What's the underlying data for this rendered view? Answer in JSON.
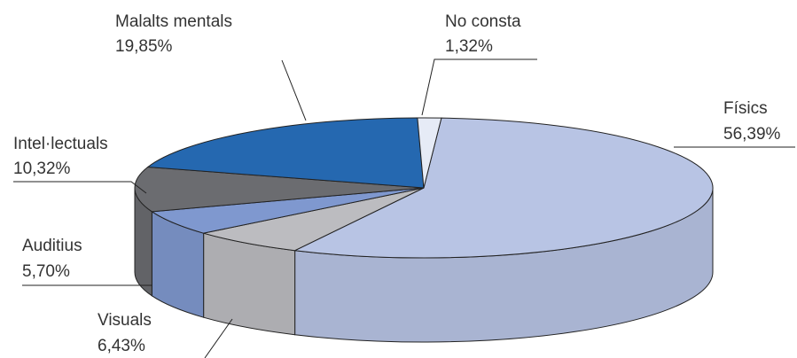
{
  "chart_data": {
    "type": "pie",
    "style": "3d",
    "title": "",
    "legend": "none",
    "slices": [
      {
        "name": "Físics",
        "value": 56.39,
        "value_label": "56,39%",
        "color": "#b8c4e4"
      },
      {
        "name": "Visuals",
        "value": 6.43,
        "value_label": "6,43%",
        "color": "#bcbcc0"
      },
      {
        "name": "Auditius",
        "value": 5.7,
        "value_label": "5,70%",
        "color": "#7f98cf"
      },
      {
        "name": "Intel·lectuals",
        "value": 10.32,
        "value_label": "10,32%",
        "color": "#6b6c70"
      },
      {
        "name": "Malalts mentals",
        "value": 19.85,
        "value_label": "19,85%",
        "color": "#2568b0"
      },
      {
        "name": "No consta",
        "value": 1.32,
        "value_label": "1,32%",
        "color": "#e6ebf6"
      }
    ]
  }
}
